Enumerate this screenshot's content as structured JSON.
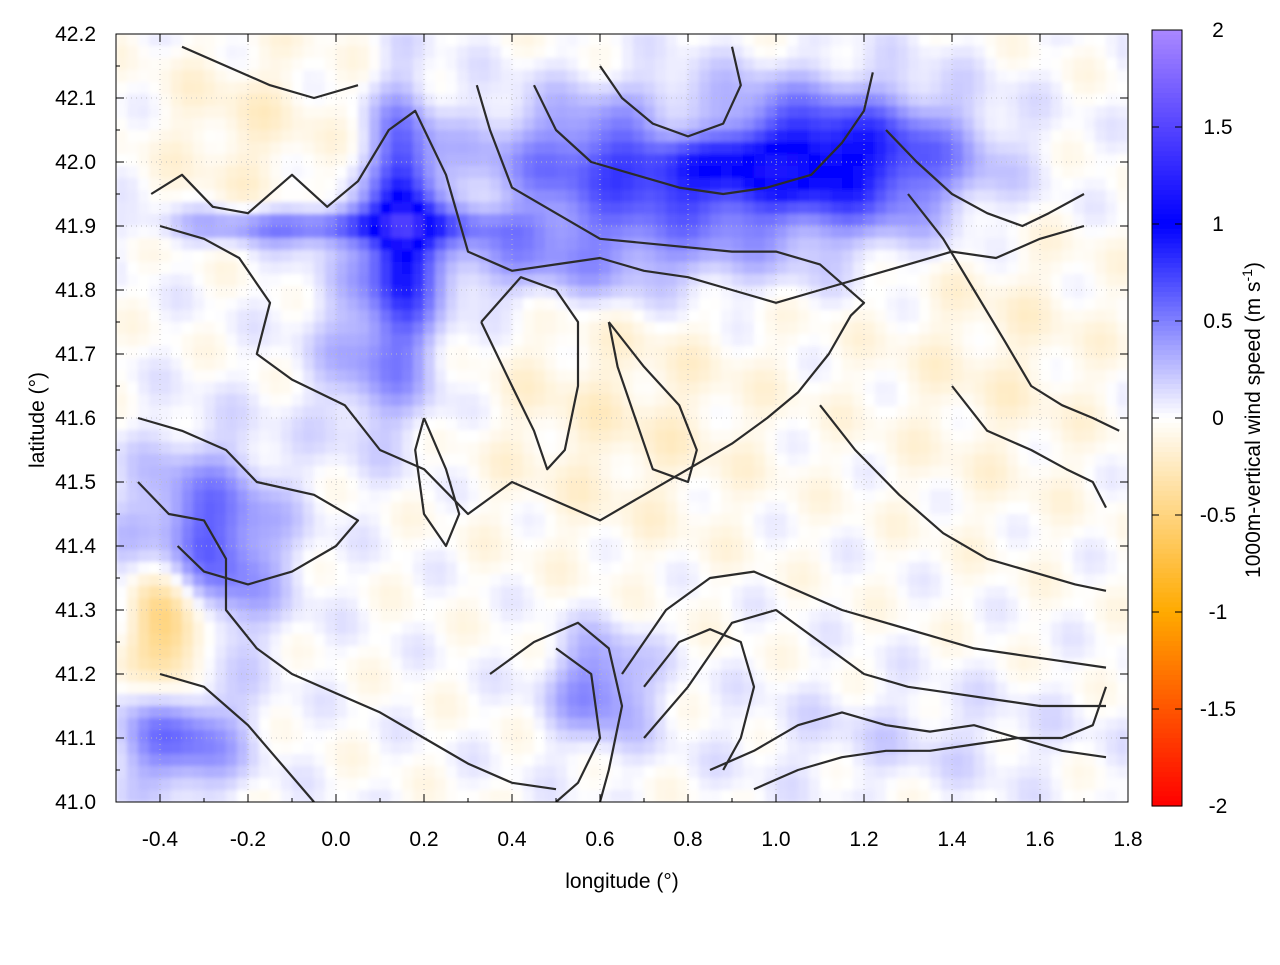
{
  "chart_data": {
    "type": "heatmap",
    "title": "",
    "xlabel": "longitude (°)",
    "ylabel": "latitude (°)",
    "colorbar_label_prefix": "1000m-vertical wind speed (m s",
    "colorbar_label_exponent": "-1",
    "colorbar_label_suffix": ")",
    "xlim": [
      -0.5,
      1.8
    ],
    "ylim": [
      41.0,
      42.2
    ],
    "zlim": [
      -2,
      2
    ],
    "x_ticks": [
      -0.4,
      -0.2,
      0.0,
      0.2,
      0.4,
      0.6,
      0.8,
      1.0,
      1.2,
      1.4,
      1.6,
      1.8
    ],
    "x_tick_labels": [
      "-0.4",
      "-0.2",
      "0.0",
      "0.2",
      "0.4",
      "0.6",
      "0.8",
      "1.0",
      "1.2",
      "1.4",
      "1.6",
      "1.8"
    ],
    "y_ticks": [
      41.0,
      41.1,
      41.2,
      41.3,
      41.4,
      41.5,
      41.6,
      41.7,
      41.8,
      41.9,
      42.0,
      42.1,
      42.2
    ],
    "y_tick_labels": [
      "41.0",
      "41.1",
      "41.2",
      "41.3",
      "41.4",
      "41.5",
      "41.6",
      "41.7",
      "41.8",
      "41.9",
      "42.0",
      "42.1",
      "42.2"
    ],
    "colorbar_ticks": [
      2,
      1.5,
      1,
      0.5,
      0,
      -0.5,
      -1,
      -1.5,
      -2
    ],
    "colorbar_tick_labels": [
      "2",
      "1.5",
      "1",
      "0.5",
      "0",
      "-0.5",
      "-1",
      "-1.5",
      "-2"
    ],
    "grid": true,
    "colormap": [
      {
        "value": -2,
        "color": "#ff0000"
      },
      {
        "value": -1,
        "color": "#ffaa00"
      },
      {
        "value": 0,
        "color": "#ffffff"
      },
      {
        "value": 1,
        "color": "#0000ff"
      },
      {
        "value": 2,
        "color": "#aa88ff"
      }
    ],
    "field_blobs": [
      {
        "x": -0.3,
        "y": 41.4,
        "sx": 0.12,
        "sy": 0.1,
        "v": 0.7
      },
      {
        "x": -0.38,
        "y": 41.28,
        "sx": 0.06,
        "sy": 0.08,
        "v": -0.8
      },
      {
        "x": -0.36,
        "y": 41.1,
        "sx": 0.1,
        "sy": 0.06,
        "v": 0.6
      },
      {
        "x": 0.15,
        "y": 41.92,
        "sx": 0.05,
        "sy": 0.12,
        "v": 0.9
      },
      {
        "x": 0.0,
        "y": 41.9,
        "sx": 0.25,
        "sy": 0.02,
        "v": 0.6
      },
      {
        "x": 0.8,
        "y": 42.0,
        "sx": 0.3,
        "sy": 0.07,
        "v": 0.9
      },
      {
        "x": 0.8,
        "y": 42.05,
        "sx": 0.1,
        "sy": 0.03,
        "v": -0.5
      },
      {
        "x": 1.2,
        "y": 42.0,
        "sx": 0.2,
        "sy": 0.08,
        "v": 0.6
      },
      {
        "x": 0.55,
        "y": 41.85,
        "sx": 0.3,
        "sy": 0.05,
        "v": 0.4
      },
      {
        "x": 0.1,
        "y": 41.7,
        "sx": 0.1,
        "sy": 0.1,
        "v": 0.4
      },
      {
        "x": 0.65,
        "y": 41.6,
        "sx": 0.25,
        "sy": 0.15,
        "v": -0.15
      },
      {
        "x": 0.6,
        "y": 41.18,
        "sx": 0.08,
        "sy": 0.06,
        "v": 0.5
      },
      {
        "x": 1.3,
        "y": 41.1,
        "sx": 0.3,
        "sy": 0.06,
        "v": 0.12
      },
      {
        "x": -0.2,
        "y": 42.05,
        "sx": 0.15,
        "sy": 0.1,
        "v": -0.15
      },
      {
        "x": 1.5,
        "y": 41.7,
        "sx": 0.2,
        "sy": 0.2,
        "v": -0.12
      }
    ],
    "contours": [
      [
        [
          -0.42,
          41.95
        ],
        [
          -0.35,
          41.98
        ],
        [
          -0.28,
          41.93
        ],
        [
          -0.2,
          41.92
        ],
        [
          -0.1,
          41.98
        ],
        [
          -0.02,
          41.93
        ],
        [
          0.05,
          41.97
        ],
        [
          0.12,
          42.05
        ],
        [
          0.18,
          42.08
        ],
        [
          0.25,
          41.98
        ],
        [
          0.3,
          41.86
        ],
        [
          0.4,
          41.83
        ],
        [
          0.5,
          41.84
        ],
        [
          0.6,
          41.85
        ],
        [
          0.7,
          41.83
        ],
        [
          0.8,
          41.82
        ],
        [
          0.9,
          41.8
        ],
        [
          1.0,
          41.78
        ],
        [
          1.1,
          41.8
        ],
        [
          1.2,
          41.82
        ],
        [
          1.3,
          41.84
        ],
        [
          1.4,
          41.86
        ],
        [
          1.5,
          41.85
        ],
        [
          1.6,
          41.88
        ],
        [
          1.7,
          41.9
        ]
      ],
      [
        [
          -0.4,
          41.9
        ],
        [
          -0.3,
          41.88
        ],
        [
          -0.22,
          41.85
        ],
        [
          -0.15,
          41.78
        ],
        [
          -0.18,
          41.7
        ],
        [
          -0.1,
          41.66
        ],
        [
          0.02,
          41.62
        ],
        [
          0.1,
          41.55
        ],
        [
          0.2,
          41.52
        ],
        [
          0.3,
          41.45
        ],
        [
          0.4,
          41.5
        ],
        [
          0.5,
          41.47
        ],
        [
          0.6,
          41.44
        ],
        [
          0.7,
          41.48
        ],
        [
          0.8,
          41.52
        ],
        [
          0.9,
          41.56
        ],
        [
          0.98,
          41.6
        ],
        [
          1.05,
          41.64
        ],
        [
          1.12,
          41.7
        ],
        [
          1.17,
          41.76
        ],
        [
          1.2,
          41.78
        ],
        [
          1.1,
          41.84
        ],
        [
          1.0,
          41.86
        ],
        [
          0.9,
          41.86
        ],
        [
          0.75,
          41.87
        ],
        [
          0.6,
          41.88
        ],
        [
          0.5,
          41.92
        ],
        [
          0.4,
          41.96
        ],
        [
          0.35,
          42.05
        ],
        [
          0.32,
          42.12
        ]
      ],
      [
        [
          -0.45,
          41.6
        ],
        [
          -0.35,
          41.58
        ],
        [
          -0.25,
          41.55
        ],
        [
          -0.18,
          41.5
        ],
        [
          -0.05,
          41.48
        ],
        [
          0.05,
          41.44
        ],
        [
          0.0,
          41.4
        ],
        [
          -0.1,
          41.36
        ],
        [
          -0.2,
          41.34
        ],
        [
          -0.3,
          41.36
        ],
        [
          -0.36,
          41.4
        ]
      ],
      [
        [
          -0.45,
          41.5
        ],
        [
          -0.38,
          41.45
        ],
        [
          -0.3,
          41.44
        ],
        [
          -0.25,
          41.38
        ],
        [
          -0.25,
          41.3
        ],
        [
          -0.18,
          41.24
        ],
        [
          -0.1,
          41.2
        ],
        [
          0.0,
          41.17
        ],
        [
          0.1,
          41.14
        ],
        [
          0.2,
          41.1
        ],
        [
          0.3,
          41.06
        ],
        [
          0.4,
          41.03
        ],
        [
          0.5,
          41.02
        ]
      ],
      [
        [
          -0.4,
          41.2
        ],
        [
          -0.3,
          41.18
        ],
        [
          -0.25,
          41.15
        ],
        [
          -0.2,
          41.12
        ],
        [
          -0.15,
          41.08
        ],
        [
          -0.1,
          41.04
        ],
        [
          -0.05,
          41.0
        ]
      ],
      [
        [
          0.35,
          41.2
        ],
        [
          0.45,
          41.25
        ],
        [
          0.55,
          41.28
        ],
        [
          0.62,
          41.24
        ],
        [
          0.65,
          41.15
        ],
        [
          0.62,
          41.05
        ],
        [
          0.6,
          41.0
        ]
      ],
      [
        [
          0.5,
          41.24
        ],
        [
          0.58,
          41.2
        ],
        [
          0.6,
          41.1
        ],
        [
          0.55,
          41.03
        ],
        [
          0.5,
          41.0
        ]
      ],
      [
        [
          0.7,
          41.18
        ],
        [
          0.78,
          41.25
        ],
        [
          0.85,
          41.27
        ],
        [
          0.92,
          41.25
        ],
        [
          0.95,
          41.18
        ],
        [
          0.92,
          41.1
        ],
        [
          0.88,
          41.05
        ]
      ],
      [
        [
          0.65,
          41.2
        ],
        [
          0.75,
          41.3
        ],
        [
          0.85,
          41.35
        ],
        [
          0.95,
          41.36
        ],
        [
          1.05,
          41.33
        ],
        [
          1.15,
          41.3
        ],
        [
          1.25,
          41.28
        ],
        [
          1.35,
          41.26
        ],
        [
          1.45,
          41.24
        ],
        [
          1.55,
          41.23
        ],
        [
          1.65,
          41.22
        ],
        [
          1.75,
          41.21
        ]
      ],
      [
        [
          0.7,
          41.1
        ],
        [
          0.8,
          41.18
        ],
        [
          0.9,
          41.28
        ],
        [
          1.0,
          41.3
        ],
        [
          1.1,
          41.25
        ],
        [
          1.2,
          41.2
        ],
        [
          1.3,
          41.18
        ],
        [
          1.4,
          41.17
        ],
        [
          1.5,
          41.16
        ],
        [
          1.6,
          41.15
        ],
        [
          1.75,
          41.15
        ]
      ],
      [
        [
          0.85,
          41.05
        ],
        [
          0.95,
          41.08
        ],
        [
          1.05,
          41.12
        ],
        [
          1.15,
          41.14
        ],
        [
          1.25,
          41.12
        ],
        [
          1.35,
          41.11
        ],
        [
          1.45,
          41.12
        ],
        [
          1.55,
          41.1
        ],
        [
          1.65,
          41.08
        ],
        [
          1.75,
          41.07
        ]
      ],
      [
        [
          0.95,
          41.02
        ],
        [
          1.05,
          41.05
        ],
        [
          1.15,
          41.07
        ],
        [
          1.25,
          41.08
        ],
        [
          1.35,
          41.08
        ],
        [
          1.45,
          41.09
        ],
        [
          1.55,
          41.1
        ],
        [
          1.65,
          41.1
        ],
        [
          1.72,
          41.12
        ],
        [
          1.75,
          41.18
        ]
      ],
      [
        [
          0.2,
          41.6
        ],
        [
          0.25,
          41.52
        ],
        [
          0.28,
          41.45
        ],
        [
          0.25,
          41.4
        ],
        [
          0.2,
          41.45
        ],
        [
          0.18,
          41.55
        ],
        [
          0.2,
          41.6
        ]
      ],
      [
        [
          0.33,
          41.75
        ],
        [
          0.4,
          41.65
        ],
        [
          0.45,
          41.58
        ],
        [
          0.48,
          41.52
        ],
        [
          0.52,
          41.55
        ],
        [
          0.55,
          41.65
        ],
        [
          0.55,
          41.75
        ],
        [
          0.5,
          41.8
        ],
        [
          0.42,
          41.82
        ],
        [
          0.33,
          41.75
        ]
      ],
      [
        [
          0.62,
          41.75
        ],
        [
          0.7,
          41.68
        ],
        [
          0.78,
          41.62
        ],
        [
          0.82,
          41.55
        ],
        [
          0.8,
          41.5
        ],
        [
          0.72,
          41.52
        ],
        [
          0.68,
          41.6
        ],
        [
          0.64,
          41.68
        ],
        [
          0.62,
          41.75
        ]
      ],
      [
        [
          1.3,
          41.95
        ],
        [
          1.38,
          41.88
        ],
        [
          1.45,
          41.8
        ],
        [
          1.52,
          41.72
        ],
        [
          1.58,
          41.65
        ],
        [
          1.65,
          41.62
        ],
        [
          1.72,
          41.6
        ],
        [
          1.78,
          41.58
        ]
      ],
      [
        [
          1.25,
          42.05
        ],
        [
          1.32,
          42.0
        ],
        [
          1.4,
          41.95
        ],
        [
          1.48,
          41.92
        ],
        [
          1.56,
          41.9
        ],
        [
          1.62,
          41.92
        ],
        [
          1.7,
          41.95
        ]
      ],
      [
        [
          0.6,
          42.15
        ],
        [
          0.65,
          42.1
        ],
        [
          0.72,
          42.06
        ],
        [
          0.8,
          42.04
        ],
        [
          0.88,
          42.06
        ],
        [
          0.92,
          42.12
        ],
        [
          0.9,
          42.18
        ]
      ],
      [
        [
          0.45,
          42.12
        ],
        [
          0.5,
          42.05
        ],
        [
          0.58,
          42.0
        ],
        [
          0.68,
          41.98
        ],
        [
          0.78,
          41.96
        ],
        [
          0.88,
          41.95
        ],
        [
          0.98,
          41.96
        ],
        [
          1.08,
          41.98
        ],
        [
          1.15,
          42.03
        ],
        [
          1.2,
          42.08
        ],
        [
          1.22,
          42.14
        ]
      ],
      [
        [
          0.05,
          42.12
        ],
        [
          -0.05,
          42.1
        ],
        [
          -0.15,
          42.12
        ],
        [
          -0.25,
          42.15
        ],
        [
          -0.35,
          42.18
        ]
      ],
      [
        [
          1.1,
          41.62
        ],
        [
          1.18,
          41.55
        ],
        [
          1.28,
          41.48
        ],
        [
          1.38,
          41.42
        ],
        [
          1.48,
          41.38
        ],
        [
          1.58,
          41.36
        ],
        [
          1.68,
          41.34
        ],
        [
          1.75,
          41.33
        ]
      ],
      [
        [
          1.4,
          41.65
        ],
        [
          1.48,
          41.58
        ],
        [
          1.58,
          41.55
        ],
        [
          1.66,
          41.52
        ],
        [
          1.72,
          41.5
        ],
        [
          1.75,
          41.46
        ]
      ]
    ]
  }
}
